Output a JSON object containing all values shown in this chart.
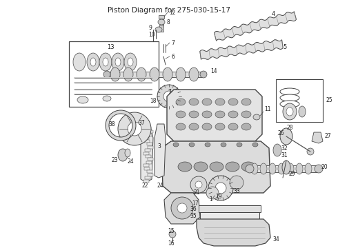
{
  "title": "Piston Diagram for 275-030-15-17",
  "bg": "#ffffff",
  "lc": "#444444",
  "tc": "#222222",
  "figsize": [
    4.9,
    3.6
  ],
  "dpi": 100
}
